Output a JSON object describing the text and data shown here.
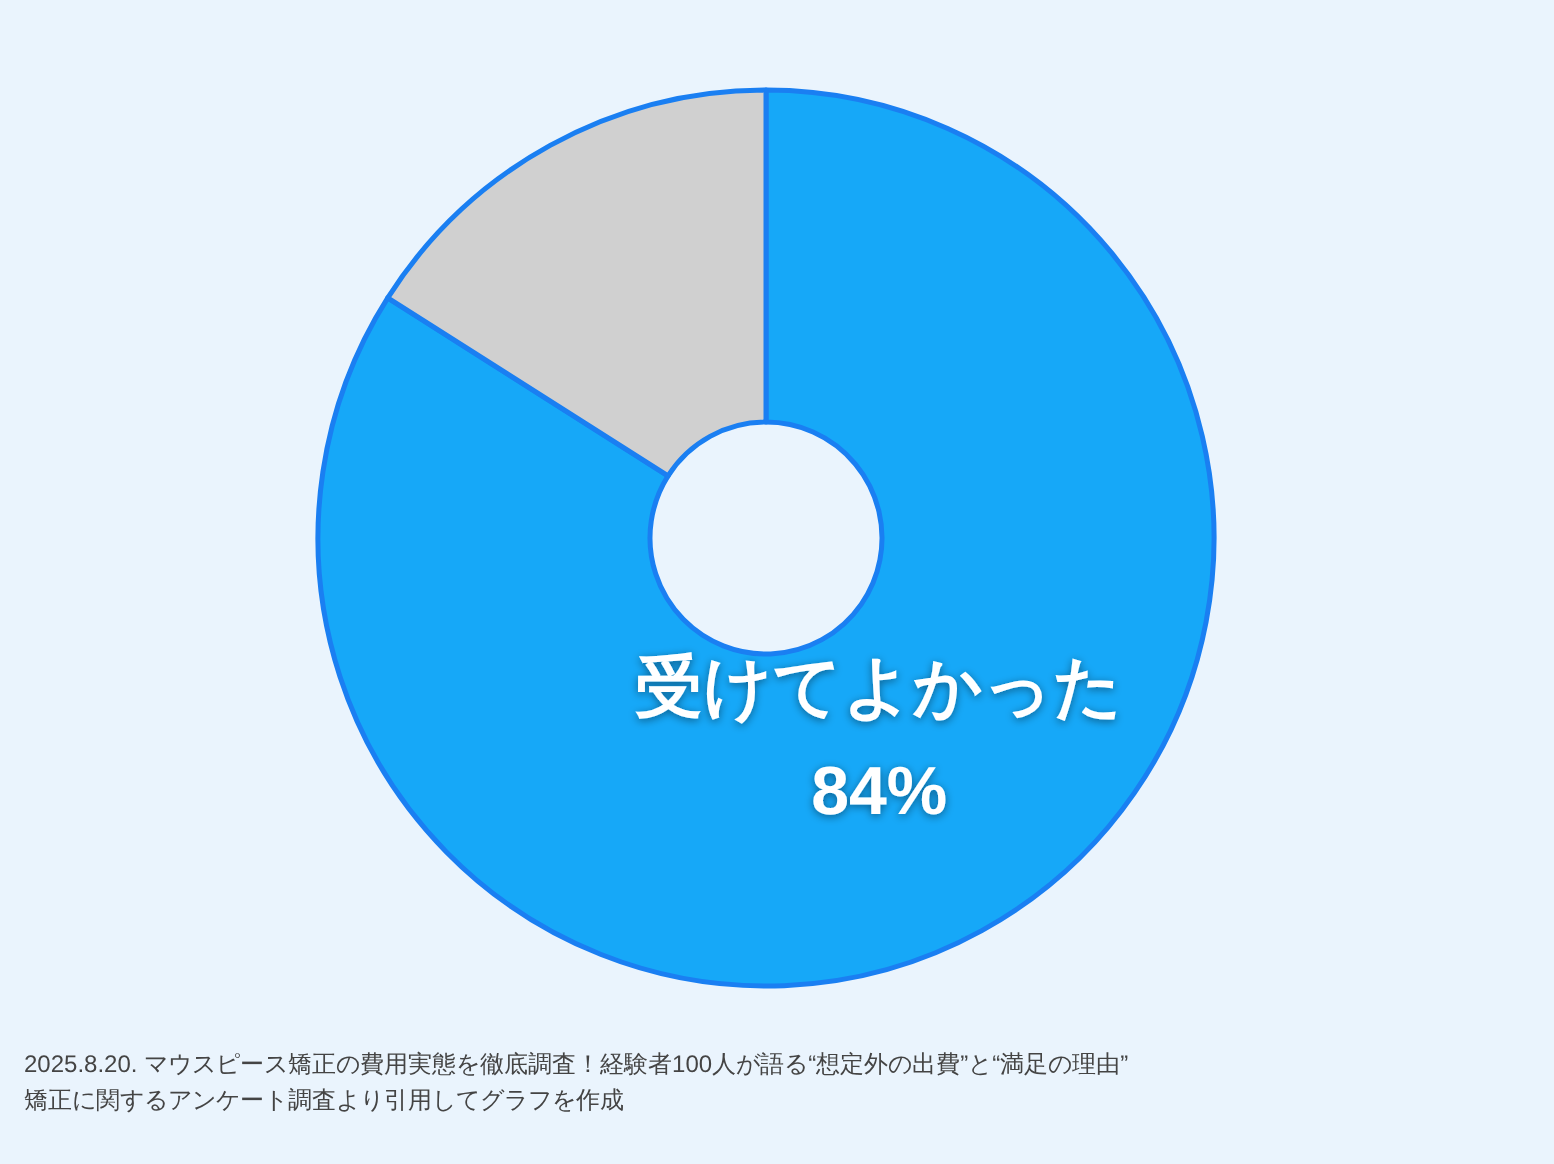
{
  "chart_data": {
    "type": "donut",
    "categories": [
      "受けてよかった",
      null
    ],
    "values": [
      84,
      16
    ],
    "colors": [
      "#16a8f8",
      "#d0d0d0"
    ],
    "value_labels": [
      "84%",
      null
    ],
    "annotations": [
      "2025.8.20. マウスピース矯正の費用実態を徹底調査！経験者100人が語る“想定外の出費”と“満足の理由”",
      "矯正に関するアンケート調査より引用してグラフを作成"
    ]
  }
}
